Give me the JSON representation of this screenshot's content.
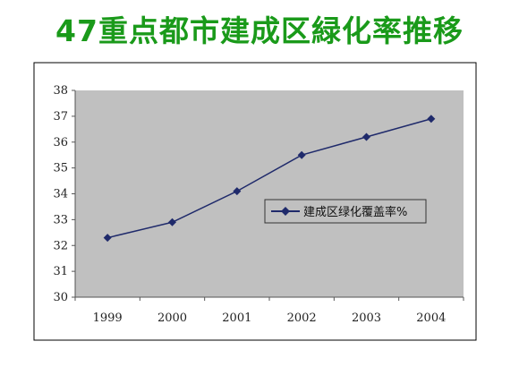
{
  "title": "47重点都市建成区緑化率推移",
  "colors": {
    "title": "#1a9a1a",
    "plot_background": "#c0c0c0",
    "series_line": "#1f2a6b",
    "marker": "#1f2a6b",
    "frame": "#000000"
  },
  "chart_data": {
    "type": "line",
    "title": "",
    "xlabel": "",
    "ylabel": "",
    "categories": [
      "1999",
      "2000",
      "2001",
      "2002",
      "2003",
      "2004"
    ],
    "ylim": [
      30,
      38
    ],
    "yticks": [
      "30",
      "31",
      "32",
      "33",
      "34",
      "35",
      "36",
      "37",
      "38"
    ],
    "grid": false,
    "legend_position": "right",
    "series": [
      {
        "name": "建成区绿化覆盖率%",
        "values": [
          32.3,
          32.9,
          34.1,
          35.5,
          36.2,
          36.9
        ]
      }
    ]
  }
}
